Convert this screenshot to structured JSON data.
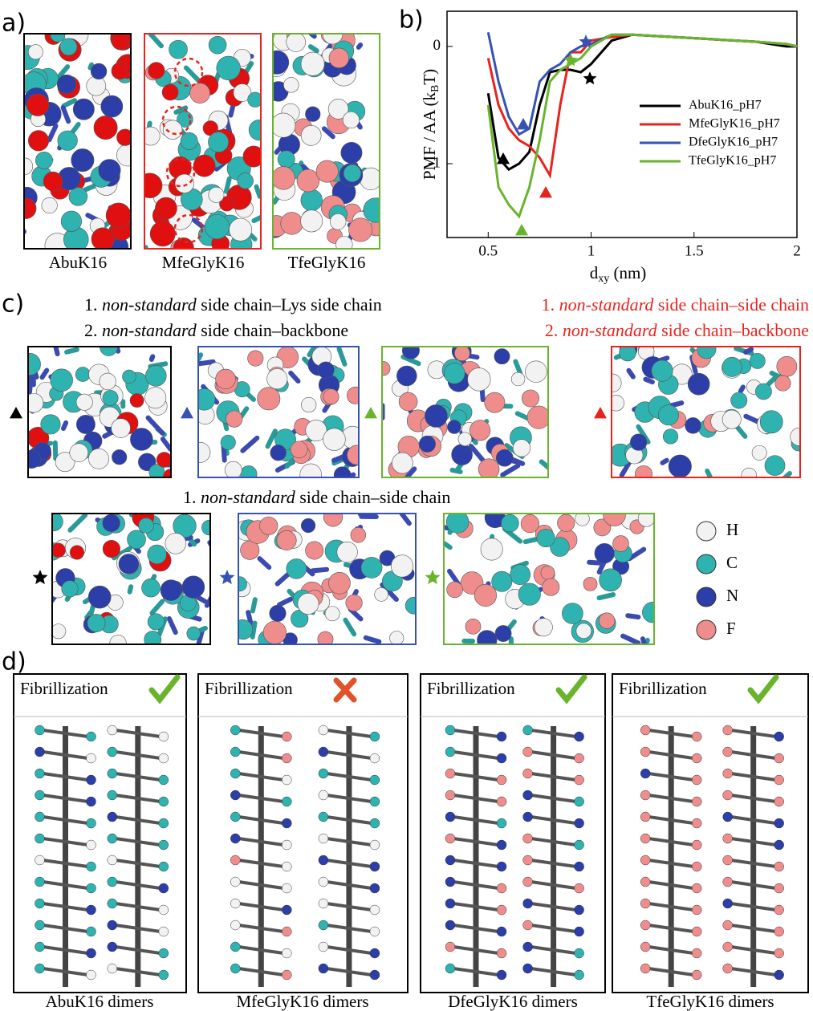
{
  "panel_labels": [
    "a)",
    "b)",
    "c)",
    "d)"
  ],
  "panel_a": {
    "captions": [
      "AbuK16",
      "MfeGlyK16",
      "TfeGlyK16"
    ]
  },
  "chart_data": {
    "type": "line",
    "ylabel": {
      "text": "PMF / AA (k",
      "sub": "B",
      "tail": "T)"
    },
    "xlabel": {
      "text": "d",
      "sub": "xy",
      "tail": " (nm)"
    },
    "x": [
      0.5,
      0.55,
      0.6,
      0.65,
      0.7,
      0.75,
      0.8,
      0.85,
      0.9,
      0.95,
      1.0,
      1.1,
      1.2,
      1.4,
      1.6,
      1.8,
      1.95,
      2.0
    ],
    "series": [
      {
        "name": "AbuK16_pH7",
        "color": "#000000",
        "values": [
          -0.4,
          -0.95,
          -1.05,
          -1.0,
          -0.9,
          -0.5,
          -0.22,
          -0.2,
          -0.2,
          -0.22,
          -0.15,
          0.05,
          0.1,
          0.08,
          0.06,
          0.04,
          0.0,
          0.0
        ]
      },
      {
        "name": "MfeGlyK16_pH7",
        "color": "#e8231d",
        "values": [
          -0.1,
          -0.5,
          -0.7,
          -0.8,
          -0.85,
          -0.95,
          -1.1,
          -0.5,
          -0.05,
          -0.05,
          0.05,
          0.08,
          0.1,
          0.08,
          0.06,
          0.04,
          0.02,
          0.0
        ]
      },
      {
        "name": "DfeGlyK16_pH7",
        "color": "#3552b4",
        "values": [
          0.12,
          -0.3,
          -0.6,
          -0.75,
          -0.7,
          -0.3,
          -0.2,
          -0.15,
          -0.05,
          0.0,
          0.02,
          0.1,
          0.1,
          0.08,
          0.06,
          0.04,
          0.02,
          0.0
        ]
      },
      {
        "name": "TfeGlyK16_pH7",
        "color": "#6ab42d",
        "values": [
          -0.5,
          -1.2,
          -1.35,
          -1.45,
          -1.2,
          -0.8,
          -0.3,
          -0.2,
          -0.15,
          -0.1,
          0.0,
          0.1,
          0.1,
          0.08,
          0.06,
          0.04,
          0.02,
          0.0
        ]
      }
    ],
    "xlim": [
      0.3,
      2.0
    ],
    "ylim": [
      -1.63,
      0.3
    ],
    "xticks": [
      0.5,
      1,
      1.5,
      2
    ],
    "yticks": [
      -1,
      0
    ]
  },
  "panel_c": {
    "black_lines": [
      "non-standard",
      " side chain–Lys side chain",
      "non-standard",
      " side chain–backbone"
    ],
    "red_lines": [
      "non-standard",
      " side chain–side chain",
      "non-standard",
      " side chain–backbone"
    ],
    "numbers": [
      "1. ",
      "2. "
    ],
    "row2_line": [
      "1. ",
      "non-standard",
      " side chain–side chain"
    ],
    "atoms": [
      "H",
      "C",
      "N",
      "F"
    ]
  },
  "panel_d": {
    "header": "Fibrillization",
    "captions": [
      "AbuK16 dimers",
      "MfeGlyK16 dimers",
      "DfeGlyK16 dimers",
      "TfeGlyK16 dimers"
    ]
  }
}
